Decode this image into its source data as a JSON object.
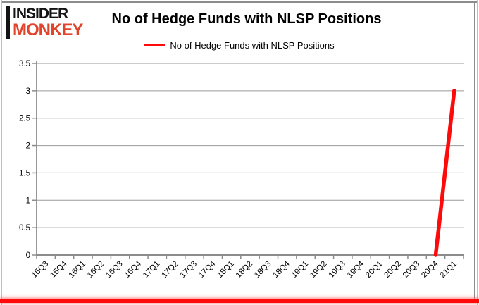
{
  "brand": {
    "line1": "INSIDER",
    "line2": "MONKEY"
  },
  "header": {
    "title": "No of Hedge Funds with NLSP Positions"
  },
  "legend": {
    "label": "No of Hedge Funds with NLSP Positions"
  },
  "colors": {
    "series_red": "#ff0a0a",
    "logo_red": "#e0452c",
    "logo_black": "#141414",
    "axis_gray": "#8c8c8c",
    "grid_gray": "#9a9a9a",
    "edge_pink": "#f3a9a9",
    "text_black": "#000000"
  },
  "chart_data": {
    "type": "line",
    "title": "No of Hedge Funds with NLSP Positions",
    "categories": [
      "15Q3",
      "15Q4",
      "16Q1",
      "16Q2",
      "16Q3",
      "16Q4",
      "17Q1",
      "17Q2",
      "17Q3",
      "17Q4",
      "18Q1",
      "18Q2",
      "18Q3",
      "18Q4",
      "19Q1",
      "19Q2",
      "19Q3",
      "19Q4",
      "20Q1",
      "20Q2",
      "20Q3",
      "20Q4",
      "21Q1"
    ],
    "series": [
      {
        "name": "No of Hedge Funds with NLSP Positions",
        "color": "#ff0a0a",
        "values": [
          null,
          null,
          null,
          null,
          null,
          null,
          null,
          null,
          null,
          null,
          null,
          null,
          null,
          null,
          null,
          null,
          null,
          null,
          null,
          null,
          null,
          0,
          3
        ]
      }
    ],
    "ylim": [
      0,
      3.5
    ],
    "y_ticks": [
      0,
      0.5,
      1,
      1.5,
      2,
      2.5,
      3,
      3.5
    ],
    "xlabel": "",
    "ylabel": "",
    "grid": "horizontal",
    "legend_position": "top"
  }
}
